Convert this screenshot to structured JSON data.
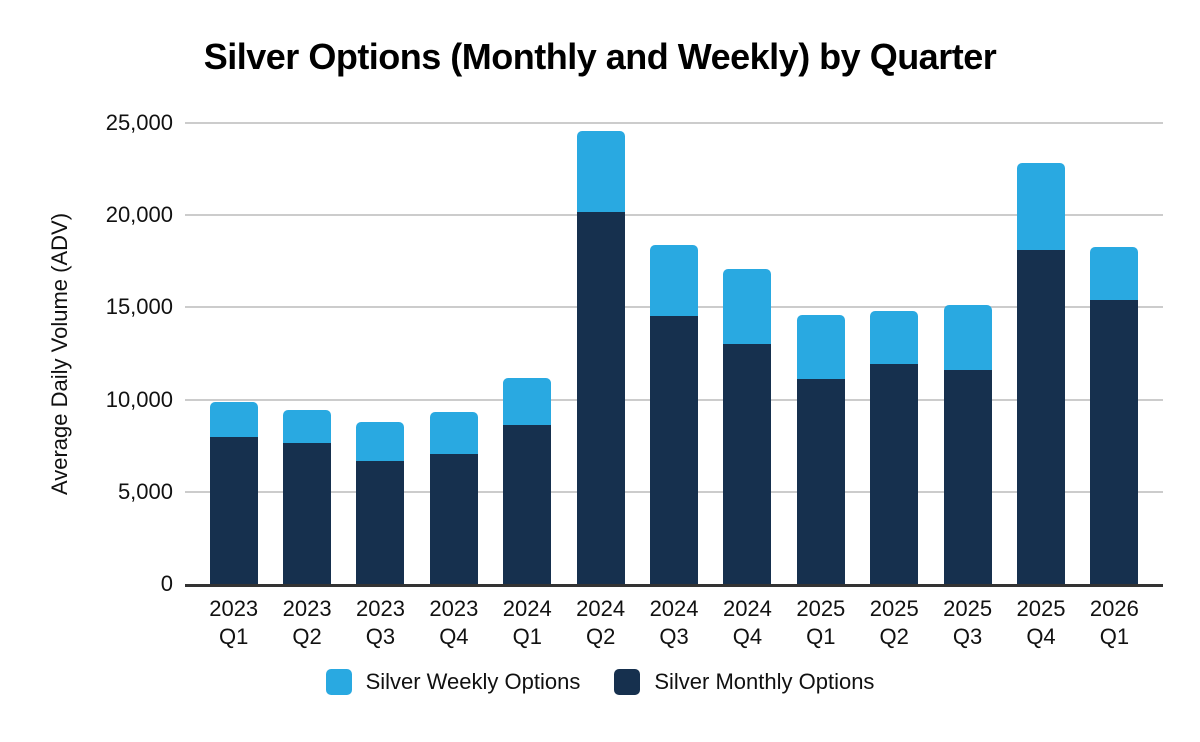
{
  "chart_data": {
    "type": "bar",
    "stacked": true,
    "title": "Silver Options (Monthly and Weekly) by Quarter",
    "ylabel": "Average Daily Volume (ADV)",
    "xlabel": "",
    "categories": [
      "2023\nQ1",
      "2023\nQ2",
      "2023\nQ3",
      "2023\nQ4",
      "2024\nQ1",
      "2024\nQ2",
      "2024\nQ3",
      "2024\nQ4",
      "2025\nQ1",
      "2025\nQ2",
      "2025\nQ3",
      "2025\nQ4",
      "2026\nQ1"
    ],
    "series": [
      {
        "name": "Silver Weekly Options",
        "color": "#29A9E1",
        "values": [
          1850,
          1800,
          2150,
          2300,
          2550,
          4400,
          3850,
          4100,
          3500,
          2850,
          3550,
          4750,
          2900
        ]
      },
      {
        "name": "Silver Monthly Options",
        "color": "#16304E",
        "values": [
          8000,
          7650,
          6650,
          7050,
          8600,
          20150,
          14550,
          13000,
          11100,
          11950,
          11600,
          18100,
          15400
        ]
      }
    ],
    "stack_totals": [
      9850,
      9450,
      8800,
      9350,
      11150,
      24550,
      18400,
      17100,
      14600,
      14800,
      15150,
      22850,
      18300
    ],
    "ylim": [
      0,
      25000
    ],
    "yticks": [
      0,
      5000,
      10000,
      15000,
      20000,
      25000
    ],
    "ytick_labels": [
      "0",
      "5,000",
      "10,000",
      "15,000",
      "20,000",
      "25,000"
    ],
    "grid": "horizontal",
    "legend_position": "bottom",
    "colors": {
      "grid": "#cccccc",
      "axis": "#333333",
      "text": "#111111",
      "title": "#000000"
    }
  }
}
